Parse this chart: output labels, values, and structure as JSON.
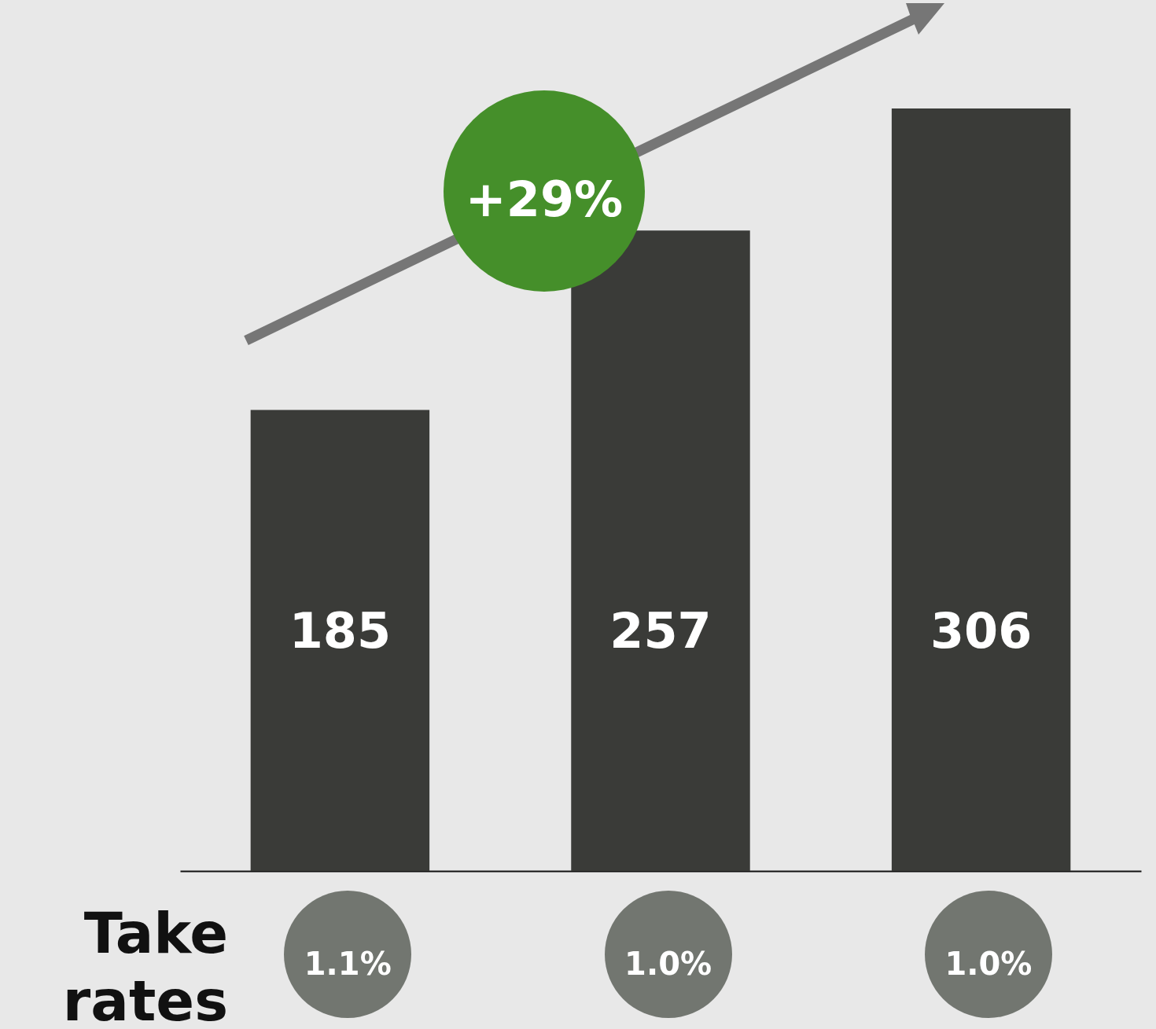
{
  "chart_data": {
    "type": "bar",
    "categories": [
      null,
      null,
      null
    ],
    "values": [
      185,
      257,
      306
    ],
    "color": "#3a3b38",
    "data_labels": true,
    "annotations": [
      "+29%",
      "Take rates",
      "1.1%",
      "1.0%",
      "1.0%"
    ]
  }
}
